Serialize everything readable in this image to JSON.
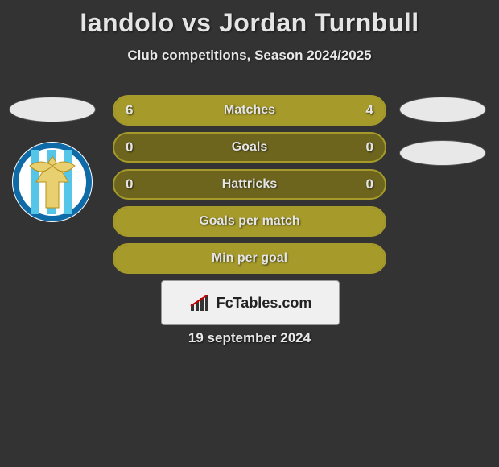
{
  "title": "Iandolo vs Jordan Turnbull",
  "subtitle": "Club competitions, Season 2024/2025",
  "date": "19 september 2024",
  "logo_text": "FcTables.com",
  "colors": {
    "bg": "#333333",
    "bar_border": "#a59a2a",
    "bar_fill": "#a59a2a",
    "bar_bg": "#6d651e",
    "text": "#e5e5e5"
  },
  "left_badge_colors": {
    "outer": "#0f6aa8",
    "inner": "#ffffff",
    "stripe": "#55c5e8",
    "wings": "#e8d070"
  },
  "bars": [
    {
      "label": "Matches",
      "left": "6",
      "right": "4",
      "left_pct": 60,
      "right_pct": 40
    },
    {
      "label": "Goals",
      "left": "0",
      "right": "0",
      "left_pct": 0,
      "right_pct": 0
    },
    {
      "label": "Hattricks",
      "left": "0",
      "right": "0",
      "left_pct": 0,
      "right_pct": 0
    },
    {
      "label": "Goals per match",
      "left": "",
      "right": "",
      "left_pct": 100,
      "right_pct": 0
    },
    {
      "label": "Min per goal",
      "left": "",
      "right": "",
      "left_pct": 100,
      "right_pct": 0
    }
  ]
}
